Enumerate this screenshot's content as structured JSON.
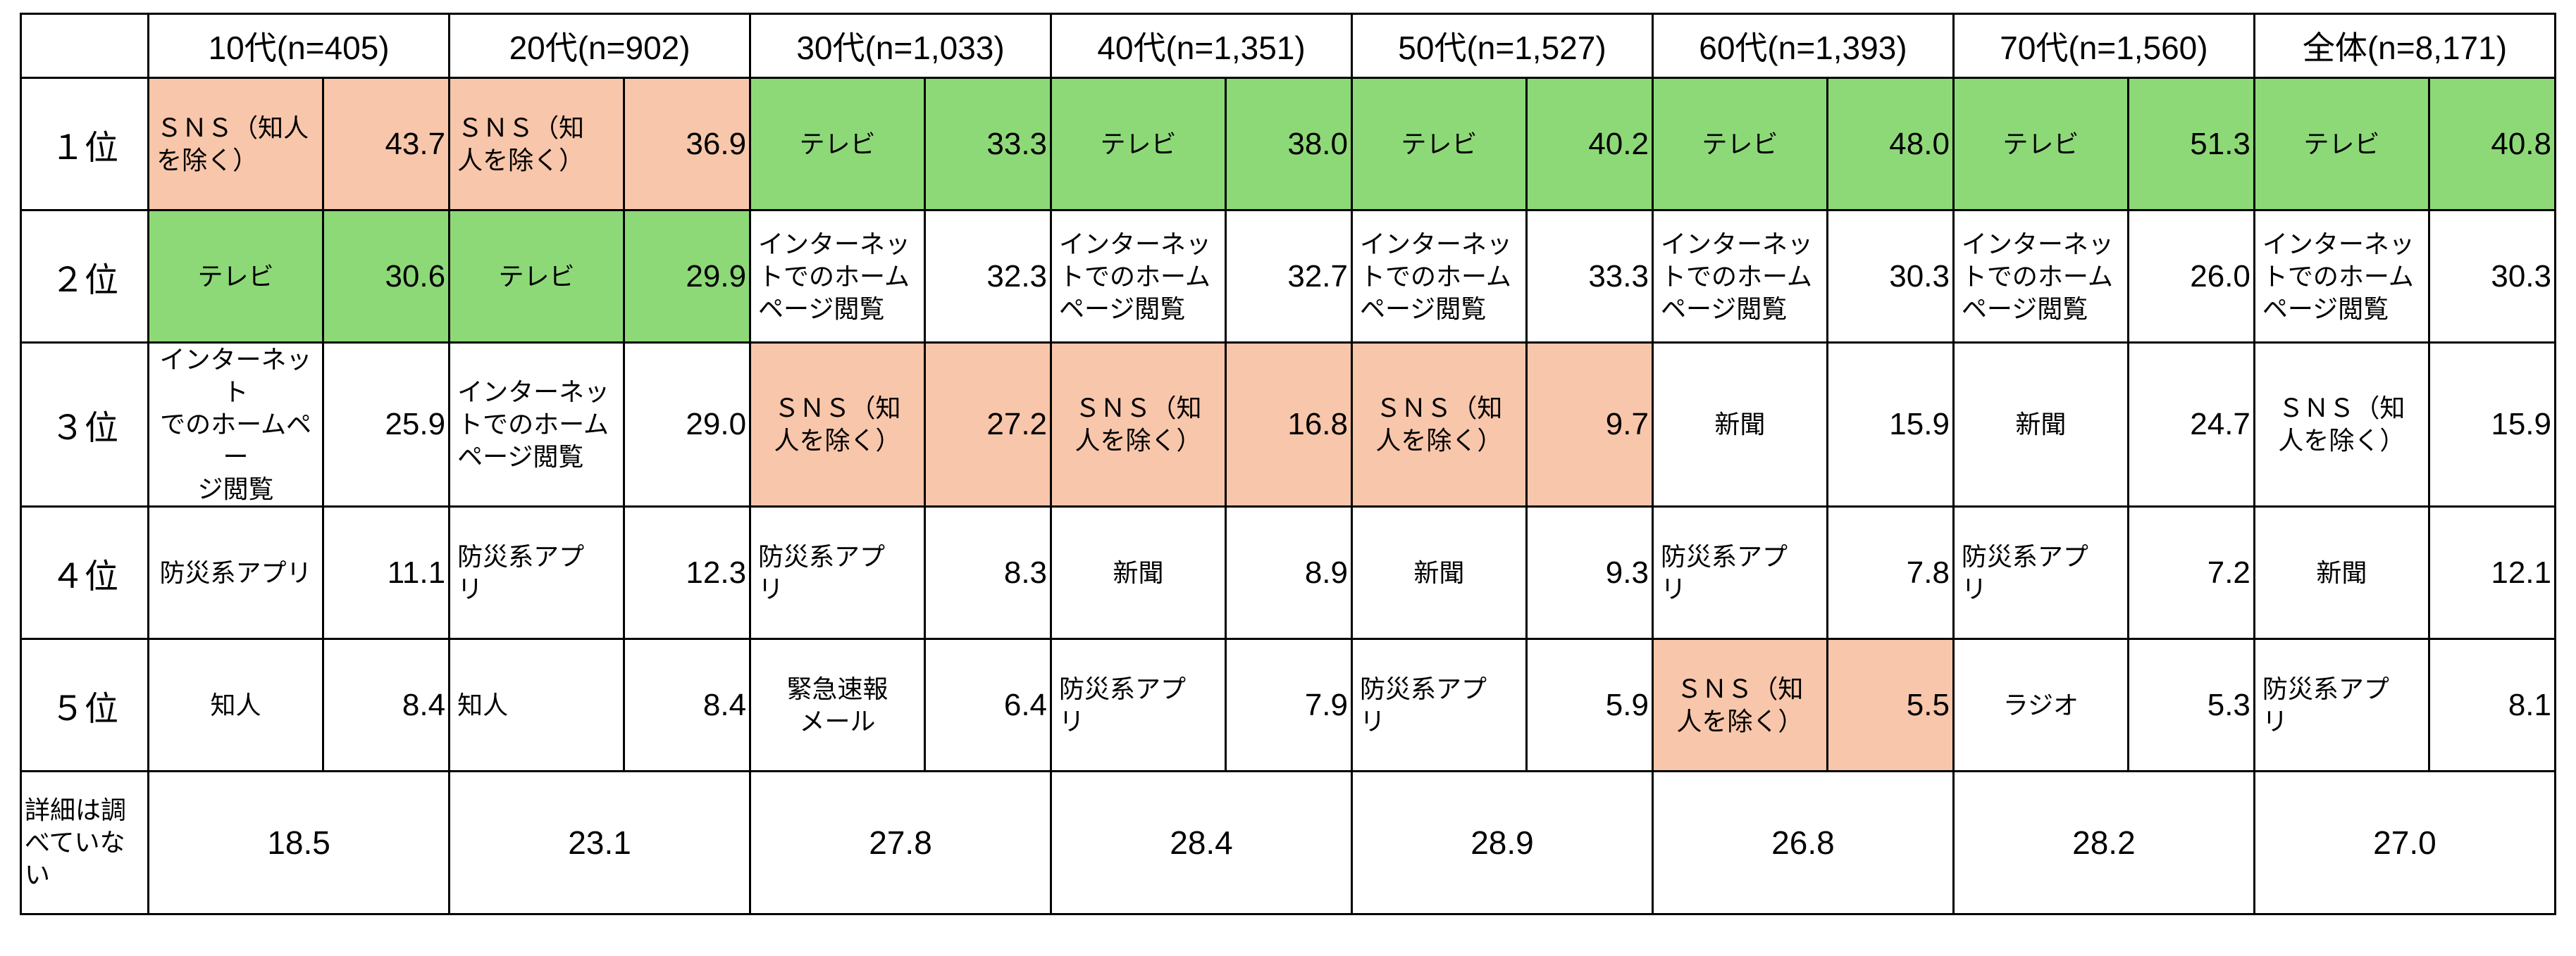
{
  "chart_data": {
    "type": "table",
    "corner": "",
    "columns": [
      "10代(n=405)",
      "20代(n=902)",
      "30代(n=1,033)",
      "40代(n=1,351)",
      "50代(n=1,527)",
      "60代(n=1,393)",
      "70代(n=1,560)",
      "全体(n=8,171)"
    ],
    "rows": [
      {
        "rank": "１位",
        "cells": [
          {
            "item": "ＳＮＳ（知人\nを除く）",
            "value": "43.7",
            "highlight": "sns",
            "align": "left"
          },
          {
            "item": "ＳＮＳ（知\n人を除く）",
            "value": "36.9",
            "highlight": "sns",
            "align": "left"
          },
          {
            "item": "テレビ",
            "value": "33.3",
            "highlight": "tv",
            "align": "center"
          },
          {
            "item": "テレビ",
            "value": "38.0",
            "highlight": "tv",
            "align": "center"
          },
          {
            "item": "テレビ",
            "value": "40.2",
            "highlight": "tv",
            "align": "center"
          },
          {
            "item": "テレビ",
            "value": "48.0",
            "highlight": "tv",
            "align": "center"
          },
          {
            "item": "テレビ",
            "value": "51.3",
            "highlight": "tv",
            "align": "center"
          },
          {
            "item": "テレビ",
            "value": "40.8",
            "highlight": "tv",
            "align": "center"
          }
        ]
      },
      {
        "rank": "２位",
        "cells": [
          {
            "item": "テレビ",
            "value": "30.6",
            "highlight": "tv",
            "align": "center"
          },
          {
            "item": "テレビ",
            "value": "29.9",
            "highlight": "tv",
            "align": "center"
          },
          {
            "item": "インターネッ\nトでのホーム\nページ閲覧",
            "value": "32.3",
            "highlight": "",
            "align": "left"
          },
          {
            "item": "インターネッ\nトでのホーム\nページ閲覧",
            "value": "32.7",
            "highlight": "",
            "align": "left"
          },
          {
            "item": "インターネッ\nトでのホーム\nページ閲覧",
            "value": "33.3",
            "highlight": "",
            "align": "left"
          },
          {
            "item": "インターネッ\nトでのホーム\nページ閲覧",
            "value": "30.3",
            "highlight": "",
            "align": "left"
          },
          {
            "item": "インターネッ\nトでのホーム\nページ閲覧",
            "value": "26.0",
            "highlight": "",
            "align": "left"
          },
          {
            "item": "インターネッ\nトでのホーム\nページ閲覧",
            "value": "30.3",
            "highlight": "",
            "align": "left"
          }
        ]
      },
      {
        "rank": "３位",
        "cells": [
          {
            "item": "インターネット\nでのホームペー\nジ閲覧",
            "value": "25.9",
            "highlight": "",
            "align": "center"
          },
          {
            "item": "インターネッ\nトでのホーム\nページ閲覧",
            "value": "29.0",
            "highlight": "",
            "align": "left"
          },
          {
            "item": "ＳＮＳ（知\n人を除く）",
            "value": "27.2",
            "highlight": "sns",
            "align": "center"
          },
          {
            "item": "ＳＮＳ（知\n人を除く）",
            "value": "16.8",
            "highlight": "sns",
            "align": "center"
          },
          {
            "item": "ＳＮＳ（知\n人を除く）",
            "value": "9.7",
            "highlight": "sns",
            "align": "center"
          },
          {
            "item": "新聞",
            "value": "15.9",
            "highlight": "",
            "align": "center"
          },
          {
            "item": "新聞",
            "value": "24.7",
            "highlight": "",
            "align": "center"
          },
          {
            "item": "ＳＮＳ（知\n人を除く）",
            "value": "15.9",
            "highlight": "",
            "align": "center"
          }
        ]
      },
      {
        "rank": "４位",
        "cells": [
          {
            "item": "防災系アプリ",
            "value": "11.1",
            "highlight": "",
            "align": "center"
          },
          {
            "item": "防災系アプ\nリ",
            "value": "12.3",
            "highlight": "",
            "align": "left"
          },
          {
            "item": "防災系アプ\nリ",
            "value": "8.3",
            "highlight": "",
            "align": "left"
          },
          {
            "item": "新聞",
            "value": "8.9",
            "highlight": "",
            "align": "center"
          },
          {
            "item": "新聞",
            "value": "9.3",
            "highlight": "",
            "align": "center"
          },
          {
            "item": "防災系アプ\nリ",
            "value": "7.8",
            "highlight": "",
            "align": "left"
          },
          {
            "item": "防災系アプ\nリ",
            "value": "7.2",
            "highlight": "",
            "align": "left"
          },
          {
            "item": "新聞",
            "value": "12.1",
            "highlight": "",
            "align": "center"
          }
        ]
      },
      {
        "rank": "５位",
        "cells": [
          {
            "item": "知人",
            "value": "8.4",
            "highlight": "",
            "align": "center"
          },
          {
            "item": "知人",
            "value": "8.4",
            "highlight": "",
            "align": "left"
          },
          {
            "item": "緊急速報\nメール",
            "value": "6.4",
            "highlight": "",
            "align": "center"
          },
          {
            "item": "防災系アプ\nリ",
            "value": "7.9",
            "highlight": "",
            "align": "left"
          },
          {
            "item": "防災系アプ\nリ",
            "value": "5.9",
            "highlight": "",
            "align": "left"
          },
          {
            "item": "ＳＮＳ（知\n人を除く）",
            "value": "5.5",
            "highlight": "sns",
            "align": "center"
          },
          {
            "item": "ラジオ",
            "value": "5.3",
            "highlight": "",
            "align": "center"
          },
          {
            "item": "防災系アプ\nリ",
            "value": "8.1",
            "highlight": "",
            "align": "left"
          }
        ]
      }
    ],
    "detail_row": {
      "label": "詳細は調\nべていな\nい",
      "values": [
        "18.5",
        "23.1",
        "27.8",
        "28.4",
        "28.9",
        "26.8",
        "28.2",
        "27.0"
      ]
    },
    "highlight_colors": {
      "sns": "#f8c6aa",
      "tv": "#8dd978"
    }
  }
}
